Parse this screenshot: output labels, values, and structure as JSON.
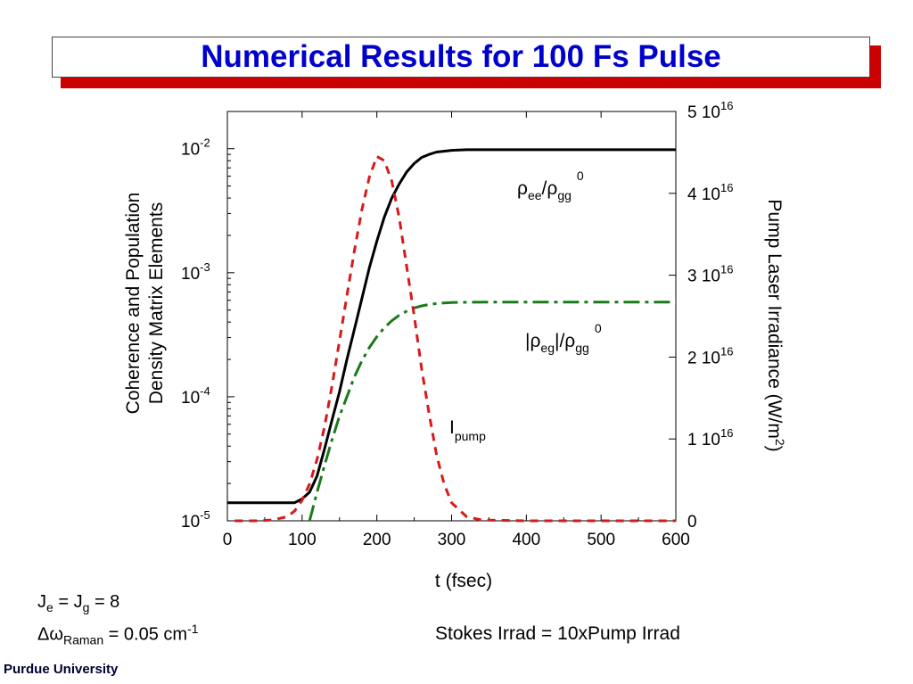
{
  "header": {
    "title": "Numerical Results for 100 Fs Pulse"
  },
  "footer": {
    "params_line1": {
      "main": "J",
      "sub1": "e",
      "mid": " = J",
      "sub2": "g",
      "tail": " = 8"
    },
    "params_line2": {
      "main": "Δω",
      "sub": "Raman",
      "tail": " = 0.05 cm",
      "sup": "-1"
    },
    "note": "Stokes Irrad = 10xPump Irrad",
    "brand": "Purdue University"
  },
  "colors": {
    "title": "#0000cc",
    "title_shadow": "#cc0000",
    "population": "#000000",
    "coherence": "#1a7a1a",
    "pump": "#d61a1a"
  },
  "chart_data": {
    "type": "line",
    "xlabel": "t (fsec)",
    "ylabel_left": [
      "Coherence and Population",
      "Density Matrix Elements"
    ],
    "ylabel_right": {
      "main": "Pump Laser Irradiance (W/m",
      "sup": "2",
      "tail": ")"
    },
    "xlim": [
      0,
      600
    ],
    "x_ticks": [
      "0",
      "100",
      "200",
      "300",
      "400",
      "500",
      "600"
    ],
    "ylim_left_log10": [
      -5,
      -1.7
    ],
    "y_ticks_left": [
      {
        "base": "10",
        "exp": "-2",
        "log10": -2
      },
      {
        "base": "10",
        "exp": "-3",
        "log10": -3
      },
      {
        "base": "10",
        "exp": "-4",
        "log10": -4
      },
      {
        "base": "10",
        "exp": "-5",
        "log10": -5
      }
    ],
    "ylim_right": [
      0,
      5e+16
    ],
    "y_ticks_right": [
      {
        "base": "0",
        "exp": "",
        "value": 0
      },
      {
        "base": "1 10",
        "exp": "16",
        "value": 1e+16
      },
      {
        "base": "2 10",
        "exp": "16",
        "value": 2e+16
      },
      {
        "base": "3 10",
        "exp": "16",
        "value": 3e+16
      },
      {
        "base": "4 10",
        "exp": "16",
        "value": 4e+16
      },
      {
        "base": "5 10",
        "exp": "16",
        "value": 5e+16
      }
    ],
    "series": [
      {
        "name": "ρee/ρgg0",
        "axis": "left_log",
        "style": "solid",
        "color": "#000000",
        "x": [
          0,
          60,
          90,
          100,
          110,
          120,
          130,
          140,
          150,
          160,
          170,
          180,
          190,
          200,
          210,
          220,
          230,
          240,
          250,
          260,
          270,
          280,
          300,
          320,
          350,
          400,
          500,
          600
        ],
        "y": [
          1.4e-05,
          1.4e-05,
          1.4e-05,
          1.5e-05,
          1.7e-05,
          2.3e-05,
          3.8e-05,
          6.5e-05,
          0.00011,
          0.0002,
          0.00035,
          0.00062,
          0.0011,
          0.0018,
          0.0028,
          0.004,
          0.0052,
          0.0065,
          0.0076,
          0.0085,
          0.009,
          0.0094,
          0.0097,
          0.0098,
          0.0098,
          0.0098,
          0.0098,
          0.0098
        ]
      },
      {
        "name": "|ρeg|/ρgg0",
        "axis": "left_log",
        "style": "dashdot",
        "color": "#1a7a1a",
        "x": [
          110,
          120,
          130,
          140,
          150,
          160,
          170,
          180,
          190,
          200,
          210,
          220,
          230,
          240,
          250,
          260,
          270,
          280,
          300,
          350,
          400,
          500,
          600
        ],
        "y": [
          1e-05,
          1.7e-05,
          2.8e-05,
          4.5e-05,
          7e-05,
          0.0001,
          0.000145,
          0.000195,
          0.00025,
          0.000305,
          0.00036,
          0.00041,
          0.000455,
          0.00049,
          0.00052,
          0.00054,
          0.000555,
          0.000565,
          0.000575,
          0.00058,
          0.00058,
          0.00058,
          0.00058
        ]
      },
      {
        "name": "Ipump",
        "axis": "right_linear",
        "style": "dashed",
        "color": "#d61a1a",
        "x": [
          10,
          40,
          60,
          80,
          90,
          100,
          110,
          120,
          130,
          140,
          150,
          160,
          170,
          180,
          190,
          200,
          210,
          220,
          230,
          240,
          250,
          260,
          270,
          280,
          290,
          300,
          320,
          340,
          400,
          500,
          600
        ],
        "y": [
          0,
          0,
          100000000000000.0,
          500000000000000.0,
          1200000000000000.0,
          2500000000000000.0,
          4500000000000000.0,
          7500000000000000.0,
          1.15e+16,
          1.65e+16,
          2.2e+16,
          2.75e+16,
          3.3e+16,
          3.8e+16,
          4.2e+16,
          4.45e+16,
          4.4e+16,
          4.15e+16,
          3.7e+16,
          3.1e+16,
          2.5e+16,
          1.85e+16,
          1.3e+16,
          8000000000000000.0,
          4500000000000000.0,
          2200000000000000.0,
          500000000000000.0,
          100000000000000.0,
          0,
          0,
          0
        ]
      }
    ],
    "annotations": {
      "rho_ee": {
        "a": "ρ",
        "sub1": "ee",
        "b": "/ρ",
        "sub2": "gg",
        "sup": "0"
      },
      "rho_eg": {
        "a": "|ρ",
        "sub1": "eg",
        "b": "|/ρ",
        "sub2": "gg",
        "sup": "0"
      },
      "ipump": {
        "a": "I",
        "sub": "pump"
      }
    },
    "grid": false,
    "legend": "none"
  }
}
